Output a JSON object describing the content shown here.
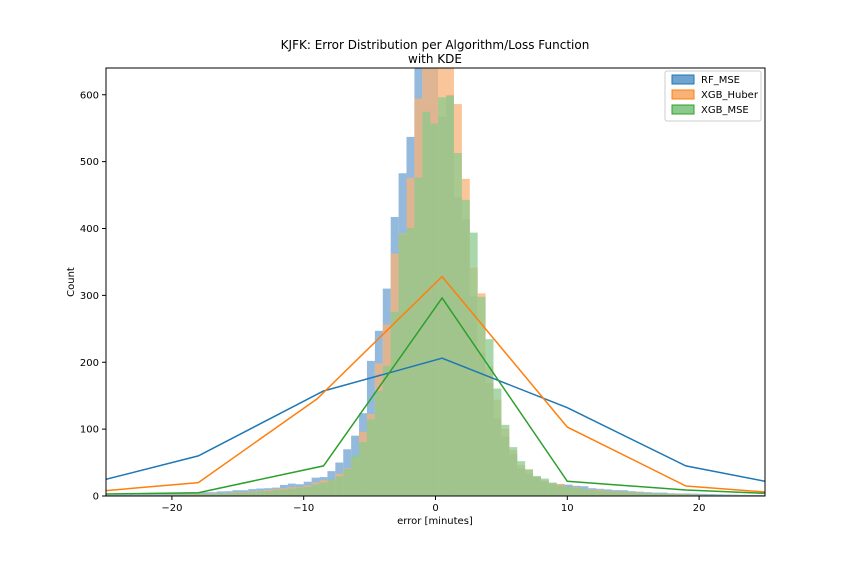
{
  "chart_data": {
    "type": "histogram",
    "title": "KJFK: Error Distribution per Algorithm/Loss Function",
    "subtitle": "with KDE",
    "xlabel": "error [minutes]",
    "ylabel": "Count",
    "xlim": [
      -25,
      25
    ],
    "ylim": [
      0,
      640
    ],
    "xticks": [
      -20,
      -10,
      0,
      10,
      20
    ],
    "yticks": [
      0,
      100,
      200,
      300,
      400,
      500,
      600
    ],
    "xtick_labels": [
      "−20",
      "−10",
      "0",
      "10",
      "20"
    ],
    "ytick_labels": [
      "0",
      "100",
      "200",
      "300",
      "400",
      "500",
      "600"
    ],
    "bin_width": 0.6,
    "grid": false,
    "legend_position": "top-right",
    "series": [
      {
        "name": "RF_MSE",
        "color": "#1f77b4",
        "hist_fill": "#6fa3d0",
        "hist_peak": 580,
        "hist_center": -0.5,
        "hist_sigma": 2.6,
        "hist_tail_amp": 95,
        "hist_tail_scale": 6.0,
        "kde_x": [
          -25,
          -18,
          -8.5,
          0.5,
          10,
          19,
          25
        ],
        "kde_y": [
          25,
          60,
          157,
          206,
          132,
          45,
          22
        ]
      },
      {
        "name": "XGB_Huber",
        "color": "#ff7f0e",
        "hist_fill": "#f8b277",
        "hist_peak": 590,
        "hist_center": 0,
        "hist_sigma": 2.5,
        "hist_tail_amp": 110,
        "hist_tail_scale": 5.0,
        "kde_x": [
          -25,
          -18,
          -9,
          0.5,
          10,
          19,
          25
        ],
        "kde_y": [
          8,
          20,
          145,
          328,
          103,
          15,
          6
        ]
      },
      {
        "name": "XGB_MSE",
        "color": "#2ca02c",
        "hist_fill": "#8cc98c",
        "hist_peak": 520,
        "hist_center": 0.2,
        "hist_sigma": 2.6,
        "hist_tail_amp": 100,
        "hist_tail_scale": 5.0,
        "kde_x": [
          -25,
          -18,
          -8.5,
          0.5,
          10,
          19,
          25
        ],
        "kde_y": [
          3,
          5,
          45,
          296,
          22,
          9,
          4
        ]
      }
    ]
  }
}
